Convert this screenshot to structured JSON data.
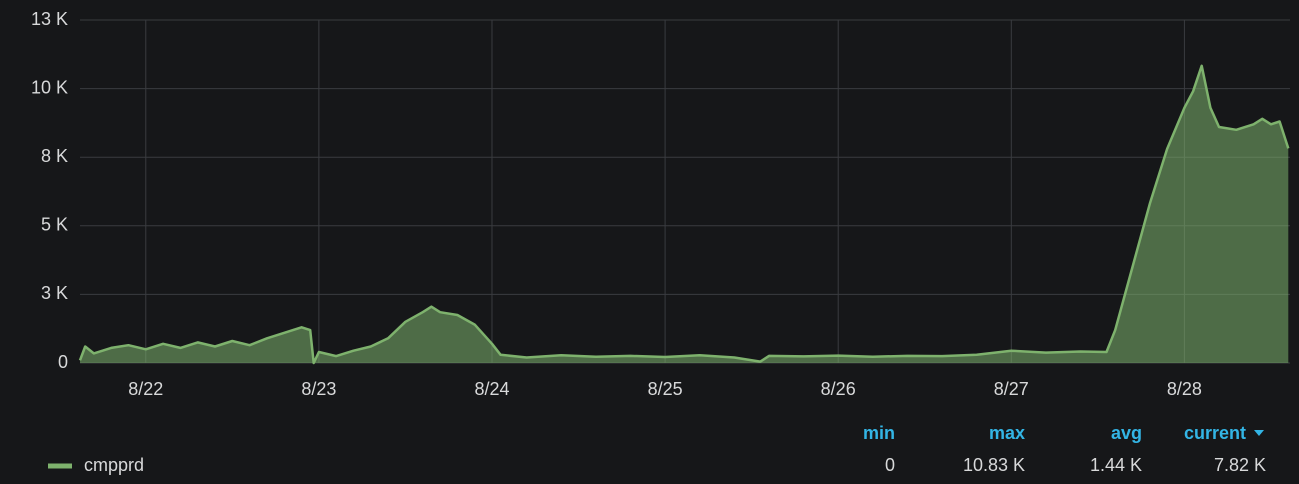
{
  "chart_data": {
    "type": "area",
    "x": [
      21.62,
      21.65,
      21.7,
      21.8,
      21.9,
      22.0,
      22.1,
      22.2,
      22.3,
      22.4,
      22.5,
      22.6,
      22.7,
      22.8,
      22.9,
      22.95,
      22.97,
      23.0,
      23.1,
      23.2,
      23.3,
      23.4,
      23.5,
      23.6,
      23.65,
      23.7,
      23.8,
      23.9,
      24.0,
      24.05,
      24.2,
      24.4,
      24.6,
      24.8,
      25.0,
      25.2,
      25.4,
      25.55,
      25.6,
      25.8,
      26.0,
      26.2,
      26.4,
      26.6,
      26.8,
      27.0,
      27.2,
      27.4,
      27.55,
      27.6,
      27.7,
      27.8,
      27.9,
      28.0,
      28.05,
      28.1,
      28.15,
      28.2,
      28.3,
      28.4,
      28.45,
      28.5,
      28.55,
      28.6
    ],
    "series": [
      {
        "name": "cmpprd",
        "color": "#7eb26d",
        "values": [
          100,
          600,
          350,
          550,
          650,
          500,
          700,
          550,
          750,
          600,
          800,
          650,
          900,
          1100,
          1300,
          1200,
          0,
          400,
          250,
          450,
          600,
          900,
          1500,
          1850,
          2050,
          1850,
          1750,
          1400,
          700,
          300,
          200,
          280,
          230,
          260,
          220,
          280,
          200,
          50,
          260,
          240,
          270,
          230,
          260,
          250,
          300,
          450,
          380,
          420,
          400,
          1200,
          3500,
          5800,
          7800,
          9300,
          9900,
          10830,
          9300,
          8600,
          8500,
          8700,
          8900,
          8700,
          8800,
          7820
        ]
      }
    ],
    "xlim": [
      21.62,
      28.61
    ],
    "xticks": [
      {
        "value": 22,
        "label": "8/22"
      },
      {
        "value": 23,
        "label": "8/23"
      },
      {
        "value": 24,
        "label": "8/24"
      },
      {
        "value": 25,
        "label": "8/25"
      },
      {
        "value": 26,
        "label": "8/26"
      },
      {
        "value": 27,
        "label": "8/27"
      },
      {
        "value": 28,
        "label": "8/28"
      }
    ],
    "ylim": [
      0,
      12500
    ],
    "yticks": [
      0,
      {
        "value": 2500,
        "label": "3 K"
      },
      {
        "value": 5000,
        "label": "5 K"
      },
      {
        "value": 7500,
        "label": "8 K"
      },
      {
        "value": 10000,
        "label": "10 K"
      },
      {
        "value": 12500,
        "label": "13 K"
      }
    ],
    "grid": true,
    "legend_stats": {
      "columns": [
        "min",
        "max",
        "avg",
        "current"
      ],
      "values": [
        0,
        10830,
        1440,
        7820
      ],
      "value_labels": [
        "0",
        "10.83 K",
        "1.44 K",
        "7.82 K"
      ]
    }
  }
}
